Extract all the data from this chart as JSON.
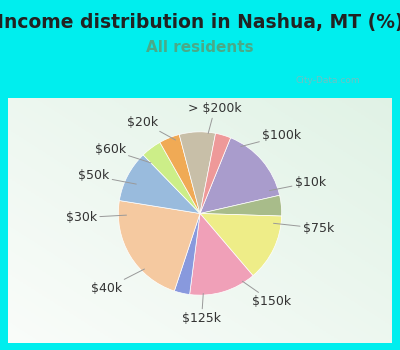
{
  "title": "Income distribution in Nashua, MT (%)",
  "subtitle": "All residents",
  "title_color": "#222222",
  "subtitle_color": "#4aaa88",
  "bg_cyan": "#00EEEE",
  "chart_bg": "#d6ede4",
  "labels": [
    "$100k",
    "$10k",
    "$75k",
    "$150k",
    "$125k",
    "$40k",
    "$30k",
    "$50k",
    "$60k",
    "$20k",
    "> $200k"
  ],
  "values": [
    15,
    4,
    13,
    13,
    3,
    22,
    10,
    4,
    4,
    7,
    3
  ],
  "colors": [
    "#a99ccc",
    "#a8bc8a",
    "#eeed88",
    "#f0a0b8",
    "#8899dd",
    "#f5c9a0",
    "#99bbdd",
    "#ccee88",
    "#f0aa55",
    "#c8bfa8",
    "#ee9999"
  ],
  "startangle": 68,
  "title_fontsize": 13.5,
  "subtitle_fontsize": 11,
  "label_fontsize": 9
}
